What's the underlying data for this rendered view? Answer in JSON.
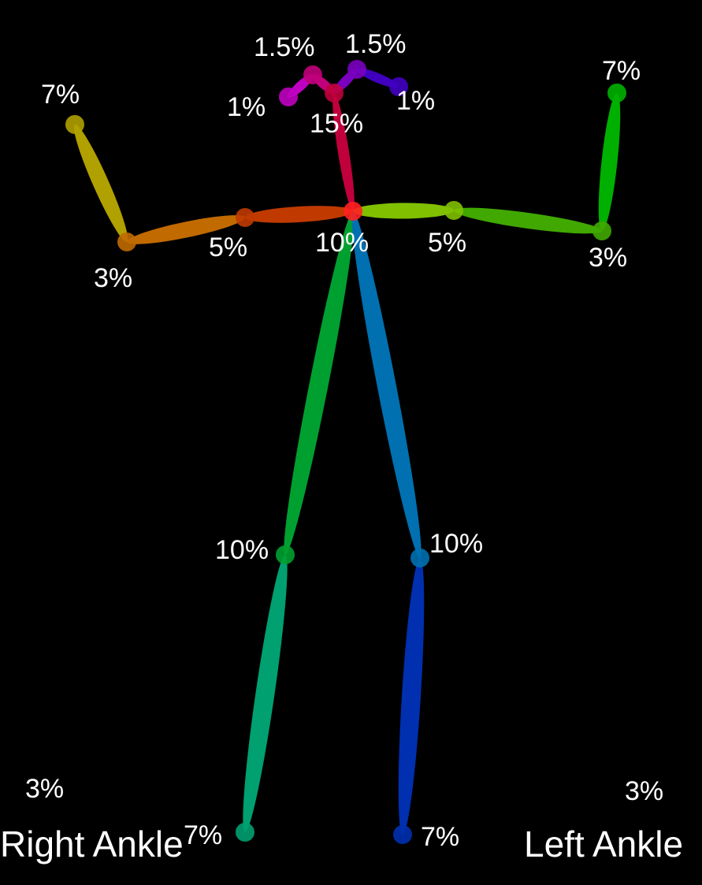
{
  "labels": {
    "nose": "15%",
    "right_eye": "1.5%",
    "left_eye": "1.5%",
    "right_ear": "1%",
    "left_ear": "1%",
    "neck": "10%",
    "right_shoulder": "5%",
    "left_shoulder": "5%",
    "right_elbow": "3%",
    "left_elbow": "3%",
    "right_wrist": "7%",
    "left_wrist": "7%",
    "right_knee": "10%",
    "left_knee": "10%",
    "right_ankle": "7%",
    "left_ankle": "7%",
    "right_foot": "3%",
    "left_foot": "3%"
  },
  "ankle_titles": {
    "right": "Right Ankle",
    "left": "Left Ankle"
  },
  "colors": {
    "background": "#000000",
    "label": "#ffffff",
    "neck_nose": "#c0003c",
    "nose_right_eye": "#c0007a",
    "right_eye_ear": "#c000c0",
    "nose_left_eye": "#7a00c0",
    "left_eye_ear": "#4000c0",
    "neck_right_shoulder": "#c03a00",
    "right_upper_arm": "#c06a00",
    "right_forearm": "#b0a000",
    "neck_left_shoulder": "#80c000",
    "left_upper_arm": "#40a800",
    "left_forearm": "#00b000",
    "neck_right_knee": "#00a030",
    "right_shin": "#00a070",
    "neck_left_knee": "#0070b0",
    "left_shin": "#0030b0",
    "neck_point": "#ff2020"
  }
}
